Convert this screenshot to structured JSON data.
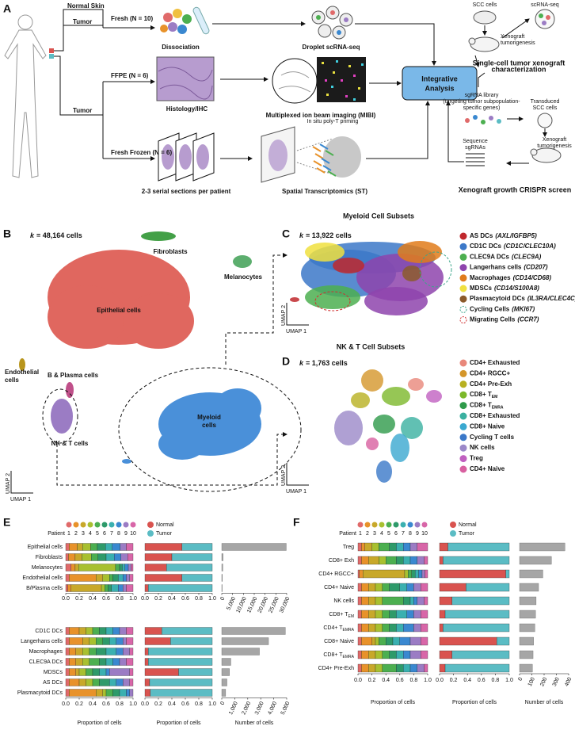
{
  "panel_a": {
    "label": "A",
    "normal_skin": "Normal Skin",
    "tumor_top": "Tumor",
    "fresh": "Fresh (N = 10)",
    "dissociation": "Dissociation",
    "droplet": "Droplet scRNA-seq",
    "scc_cells": "SCC cells",
    "scrna": "scRNA-seq",
    "xeno1": [
      "Xenograft",
      "tumorigenesis"
    ],
    "xeno_title": [
      "Single-cell tumor xenograft",
      "characterization"
    ],
    "ffpe": "FFPE (N = 6)",
    "tumor_mid": "Tumor",
    "histology": "Histology/IHC",
    "mibi": "Multiplexed ion beam imaging (MIBI)",
    "integrative": [
      "Integrative",
      "Analysis"
    ],
    "sgrna_lib": [
      "sgRNA library",
      "(targeting tumor subpopulation-",
      "specific genes)"
    ],
    "transduced": [
      "Transduced",
      "SCC cells"
    ],
    "xeno2": [
      "Xenograft",
      "tumorigenesis"
    ],
    "sequence": [
      "Sequence",
      "sgRNAs"
    ],
    "crispr": "Xenograft growth CRISPR screen",
    "fresh_frozen": "Fresh Frozen (N = 6)",
    "poly_t": "In situ poly-T priming",
    "serial": "2-3 serial sections per patient",
    "st": "Spatial Transcriptomics (ST)"
  },
  "panel_b": {
    "label": "B",
    "k": {
      "var": "k",
      "text": "= 48,164 cells"
    },
    "clusters": [
      {
        "name": [
          "Fibroblasts"
        ],
        "color": "#43a047"
      },
      {
        "name": [
          "Melanocytes"
        ],
        "color": "#5cae6e"
      },
      {
        "name": [
          "Epithelial cells"
        ],
        "color": "#e0675f"
      },
      {
        "name": [
          "Endothelial",
          "cells"
        ],
        "color": "#b8951c"
      },
      {
        "name": [
          "B & Plasma cells"
        ],
        "color": "#c0508a"
      },
      {
        "name": [
          "NK & T cells"
        ],
        "color": "#9b7cc4"
      },
      {
        "name": [
          "Myeloid",
          "cells"
        ],
        "color": "#4a90d9"
      }
    ],
    "umap_y": "UMAP 2",
    "umap_x": "UMAP 1"
  },
  "panel_c": {
    "title": "Myeloid Cell Subsets",
    "label": "C",
    "k": {
      "var": "k",
      "text": "= 13,922 cells"
    },
    "legend": [
      {
        "name": "AS DCs",
        "gene": "(AXL/IGFBP5)",
        "color": "#c0282d"
      },
      {
        "name": "CD1C DCs",
        "gene": "(CD1C/CLEC10A)",
        "color": "#3c78c8"
      },
      {
        "name": "CLEC9A DCs",
        "gene": "(CLEC9A)",
        "color": "#4caf50"
      },
      {
        "name": "Langerhans cells",
        "gene": "(CD207)",
        "color": "#8e44ad"
      },
      {
        "name": "Macrophages",
        "gene": "(CD14/CD68)",
        "color": "#e07b1a"
      },
      {
        "name": "MDSCs",
        "gene": "(CD14/S100A8)",
        "color": "#f0e040"
      },
      {
        "name": "Plasmacytoid DCs",
        "gene": "(IL3RA/CLEC4C)",
        "color": "#8b5a2b"
      },
      {
        "name": "Cycling Cells",
        "gene": "(MKI67)",
        "color": "#3aa58a",
        "style": "dashed"
      },
      {
        "name": "Migrating Cells",
        "gene": "(CCR7)",
        "color": "#d03030",
        "style": "dashed"
      }
    ],
    "umap_y": "UMAP 2",
    "umap_x": "UMAP 1"
  },
  "panel_d": {
    "title": "NK & T Cell Subsets",
    "label": "D",
    "k": {
      "var": "k",
      "text": "= 1,763 cells"
    },
    "legend": [
      {
        "text": "CD4+ Exhausted",
        "color": "#e8877a"
      },
      {
        "text": "CD4+ RGCC+",
        "color": "#d4962a"
      },
      {
        "text": "CD4+ Pre-Exh",
        "color": "#b8b020"
      },
      {
        "text": "CD8+ T",
        "sub": "EM",
        "color": "#7cb82a"
      },
      {
        "text": "CD8+ T",
        "sub": "EMRA",
        "color": "#2e9a4a"
      },
      {
        "text": "CD8+ Exhausted",
        "color": "#3ab0a0"
      },
      {
        "text": "CD8+ Naive",
        "color": "#3aa8d0"
      },
      {
        "text": "Cycling T cells",
        "color": "#3a78c8"
      },
      {
        "text": "NK cells",
        "color": "#9b88c8"
      },
      {
        "text": "Treg",
        "color": "#c060c0"
      },
      {
        "text": "CD4+ Naive",
        "color": "#d860a0"
      }
    ],
    "umap_y": "UMAP 2",
    "umap_x": "UMAP 1"
  },
  "panel_e": {
    "label": "E",
    "patient_title": "Patient",
    "patients": [
      "1",
      "2",
      "3",
      "4",
      "5",
      "6",
      "7",
      "8",
      "9",
      "10"
    ],
    "patient_colors": [
      "#e06a6a",
      "#e8922a",
      "#c8a82a",
      "#a8c030",
      "#4caf50",
      "#2e9a6a",
      "#3ab0b0",
      "#3a88d0",
      "#9b7cc4",
      "#d866a8"
    ],
    "conditions": [
      {
        "name": "Normal",
        "color": "#d9534f"
      },
      {
        "name": "Tumor",
        "color": "#5bbcc4"
      }
    ],
    "prop_xlim": [
      0,
      1
    ],
    "prop_ticks": [
      {
        "value": 0,
        "label": "0.0"
      },
      0.2,
      0.4,
      0.6,
      0.8,
      {
        "value": 1,
        "label": "1.0"
      }
    ],
    "prop_label": "Proportion of cells",
    "count_label": "Number of cells",
    "bar_color": "#a6a6a6",
    "groups": [
      {
        "categories": [
          "Epithelial cells",
          "Fibroblasts",
          "Melanocytes",
          "Endothelial cells",
          "B/Plasma cells"
        ],
        "patient_props": [
          [
            0.05,
            0.12,
            0.08,
            0.12,
            0.1,
            0.12,
            0.1,
            0.12,
            0.09,
            0.1
          ],
          [
            0.04,
            0.1,
            0.1,
            0.14,
            0.1,
            0.12,
            0.12,
            0.1,
            0.1,
            0.08
          ],
          [
            0.08,
            0.06,
            0.05,
            0.55,
            0.06,
            0.04,
            0.04,
            0.05,
            0.04,
            0.03
          ],
          [
            0.05,
            0.4,
            0.1,
            0.1,
            0.05,
            0.08,
            0.07,
            0.05,
            0.05,
            0.05
          ],
          [
            0.03,
            0.05,
            0.45,
            0.05,
            0.05,
            0.05,
            0.1,
            0.07,
            0.05,
            0.1
          ]
        ],
        "normal": [
          0.55,
          0.4,
          0.32,
          0.55,
          0.05
        ],
        "tumor": [
          0.45,
          0.6,
          0.68,
          0.45,
          0.95
        ],
        "cells": [
          29800,
          600,
          500,
          300,
          200
        ],
        "cells_xlim": [
          0,
          30000
        ],
        "cells_ticks": [
          0,
          {
            "value": 5000,
            "label": "5,000"
          },
          {
            "value": 10000,
            "label": "10,000"
          },
          {
            "value": 15000,
            "label": "15,000"
          },
          {
            "value": 20000,
            "label": "20,000"
          },
          {
            "value": 25000,
            "label": "25,000"
          },
          {
            "value": 30000,
            "label": "30,000"
          }
        ]
      },
      {
        "categories": [
          "CD1C DCs",
          "Langerhans cells",
          "Macrophages",
          "CLEC9A DCs",
          "MDSCs",
          "AS DCs",
          "Plasmacytoid DCs"
        ],
        "patient_props": [
          [
            0.05,
            0.15,
            0.1,
            0.1,
            0.1,
            0.1,
            0.1,
            0.1,
            0.1,
            0.1
          ],
          [
            0.05,
            0.2,
            0.1,
            0.1,
            0.1,
            0.1,
            0.1,
            0.1,
            0.05,
            0.1
          ],
          [
            0.05,
            0.1,
            0.1,
            0.1,
            0.1,
            0.15,
            0.15,
            0.1,
            0.1,
            0.05
          ],
          [
            0.05,
            0.1,
            0.1,
            0.1,
            0.15,
            0.1,
            0.1,
            0.1,
            0.1,
            0.1
          ],
          [
            0.05,
            0.1,
            0.05,
            0.1,
            0.1,
            0.1,
            0.1,
            0.05,
            0.3,
            0.05
          ],
          [
            0.05,
            0.15,
            0.1,
            0.1,
            0.1,
            0.15,
            0.1,
            0.1,
            0.1,
            0.05
          ],
          [
            0.05,
            0.4,
            0.1,
            0.05,
            0.1,
            0.1,
            0.1,
            0.05,
            0.05,
            0
          ]
        ],
        "normal": [
          0.25,
          0.38,
          0.05,
          0.05,
          0.5,
          0.07,
          0.08
        ],
        "tumor": [
          0.75,
          0.62,
          0.95,
          0.95,
          0.5,
          0.93,
          0.92
        ],
        "cells": [
          4900,
          3600,
          2900,
          700,
          600,
          400,
          300
        ],
        "cells_xlim": [
          0,
          5000
        ],
        "cells_ticks": [
          0,
          {
            "value": 1000,
            "label": "1,000"
          },
          {
            "value": 2000,
            "label": "2,000"
          },
          {
            "value": 3000,
            "label": "3,000"
          },
          {
            "value": 4000,
            "label": "4,000"
          },
          {
            "value": 5000,
            "label": "5,000"
          }
        ]
      }
    ]
  },
  "panel_f": {
    "label": "F",
    "patient_title": "Patient",
    "patients": [
      "1",
      "2",
      "3",
      "4",
      "5",
      "6",
      "7",
      "8",
      "9",
      "10"
    ],
    "patient_colors": [
      "#e06a6a",
      "#e8922a",
      "#c8a82a",
      "#a8c030",
      "#4caf50",
      "#2e9a6a",
      "#3ab0b0",
      "#3a88d0",
      "#9b7cc4",
      "#d866a8"
    ],
    "conditions": [
      {
        "name": "Normal",
        "color": "#d9534f"
      },
      {
        "name": "Tumor",
        "color": "#5bbcc4"
      }
    ],
    "prop_xlim": [
      0,
      1
    ],
    "prop_ticks": [
      {
        "value": 0,
        "label": "0.0"
      },
      0.2,
      0.4,
      0.6,
      0.8,
      {
        "value": 1,
        "label": "1.0"
      }
    ],
    "prop_label": "Proportion of cells",
    "count_label": "Number of cells",
    "bar_color": "#a6a6a6",
    "groups": [
      {
        "categories": [
          "Treg",
          "CD8+ Exh",
          "CD4+ RGCC+",
          "CD4+ Naive",
          "NK cells",
          {
            "text": "CD8+ T",
            "sub": "EM"
          },
          {
            "text": "CD4+ T",
            "sub": "EMRA"
          },
          "CD8+ Naive",
          {
            "text": "CD8+ T",
            "sub": "EMRA"
          },
          "CD4+ Pre-Exh"
        ],
        "patient_props": [
          [
            0.05,
            0.05,
            0.1,
            0.1,
            0.15,
            0.1,
            0.1,
            0.1,
            0.1,
            0.15
          ],
          [
            0.05,
            0.1,
            0.15,
            0.1,
            0.15,
            0.1,
            0.1,
            0.1,
            0.1,
            0.05
          ],
          [
            0.02,
            0.05,
            0.6,
            0.05,
            0.05,
            0.05,
            0.05,
            0.05,
            0.04,
            0.04
          ],
          [
            0.05,
            0.1,
            0.1,
            0.1,
            0.1,
            0.15,
            0.1,
            0.1,
            0.1,
            0.1
          ],
          [
            0.05,
            0.1,
            0.1,
            0.1,
            0.3,
            0.1,
            0.05,
            0.05,
            0.1,
            0.05
          ],
          [
            0.05,
            0.1,
            0.1,
            0.1,
            0.1,
            0.1,
            0.15,
            0.1,
            0.1,
            0.1
          ],
          [
            0.05,
            0.1,
            0.1,
            0.1,
            0.1,
            0.1,
            0.1,
            0.15,
            0.1,
            0.1
          ],
          [
            0.05,
            0.15,
            0.05,
            0.05,
            0.1,
            0.1,
            0.1,
            0.15,
            0.15,
            0.1
          ],
          [
            0.05,
            0.1,
            0.1,
            0.1,
            0.1,
            0.1,
            0.1,
            0.1,
            0.15,
            0.1
          ],
          [
            0.05,
            0.1,
            0.1,
            0.1,
            0.2,
            0.1,
            0.1,
            0.1,
            0.1,
            0.05
          ]
        ],
        "normal": [
          0.12,
          0.05,
          0.95,
          0.38,
          0.18,
          0.08,
          0.05,
          0.82,
          0.18,
          0.08
        ],
        "tumor": [
          0.88,
          0.95,
          0.05,
          0.62,
          0.82,
          0.92,
          0.95,
          0.18,
          0.82,
          0.92
        ],
        "cells": [
          370,
          260,
          190,
          155,
          135,
          130,
          125,
          115,
          110,
          105
        ],
        "cells_xlim": [
          0,
          400
        ],
        "cells_ticks": [
          0,
          100,
          200,
          300,
          400
        ]
      }
    ]
  }
}
